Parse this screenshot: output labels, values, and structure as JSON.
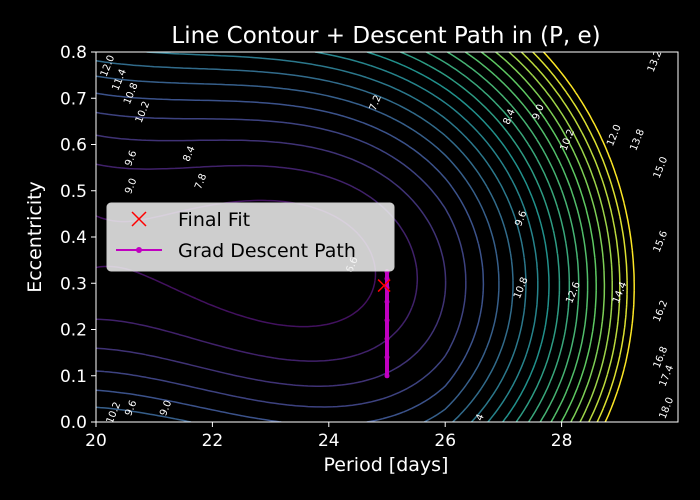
{
  "chart_data": {
    "type": "contour",
    "title": "Line Contour + Descent Path in (P, e)",
    "xlabel": "Period [days]",
    "ylabel": "Eccentricity",
    "xlim": [
      20,
      30
    ],
    "ylim": [
      0,
      0.8
    ],
    "xticks": [
      "20",
      "22",
      "24",
      "26",
      "28"
    ],
    "yticks": [
      "0.0",
      "0.1",
      "0.2",
      "0.3",
      "0.4",
      "0.5",
      "0.6",
      "0.7",
      "0.8"
    ],
    "grid": false,
    "colormap": "viridis",
    "background": "#000000",
    "contour_levels": [
      6.6,
      7.2,
      7.8,
      8.4,
      9.0,
      9.6,
      10.2,
      10.8,
      11.4,
      12.0,
      12.6,
      13.2,
      13.8,
      14.4,
      15.0,
      15.6,
      16.2,
      16.8,
      17.4,
      18.0
    ],
    "level_range": [
      6.0,
      18.0
    ],
    "contour_labels": [
      {
        "text": "12.0",
        "x": 20.2,
        "y": 0.77
      },
      {
        "text": "11.4",
        "x": 20.4,
        "y": 0.74
      },
      {
        "text": "10.8",
        "x": 20.6,
        "y": 0.71
      },
      {
        "text": "10.2",
        "x": 20.8,
        "y": 0.67
      },
      {
        "text": "9.6",
        "x": 20.6,
        "y": 0.57
      },
      {
        "text": "9.0",
        "x": 20.6,
        "y": 0.51
      },
      {
        "text": "8.4",
        "x": 21.6,
        "y": 0.58
      },
      {
        "text": "7.8",
        "x": 21.8,
        "y": 0.52
      },
      {
        "text": "7.2",
        "x": 24.8,
        "y": 0.69
      },
      {
        "text": "6.6",
        "x": 24.4,
        "y": 0.34
      },
      {
        "text": "8.4",
        "x": 27.1,
        "y": 0.66
      },
      {
        "text": "9.0",
        "x": 27.6,
        "y": 0.67
      },
      {
        "text": "10.2",
        "x": 28.1,
        "y": 0.61
      },
      {
        "text": "12.0",
        "x": 28.9,
        "y": 0.62
      },
      {
        "text": "13.8",
        "x": 29.3,
        "y": 0.61
      },
      {
        "text": "13.2",
        "x": 29.6,
        "y": 0.78
      },
      {
        "text": "15.0",
        "x": 29.7,
        "y": 0.55
      },
      {
        "text": "9.6",
        "x": 27.3,
        "y": 0.44
      },
      {
        "text": "15.6",
        "x": 29.7,
        "y": 0.39
      },
      {
        "text": "10.8",
        "x": 27.3,
        "y": 0.29
      },
      {
        "text": "12.6",
        "x": 28.2,
        "y": 0.28
      },
      {
        "text": "14.4",
        "x": 29.0,
        "y": 0.28
      },
      {
        "text": "16.2",
        "x": 29.7,
        "y": 0.24
      },
      {
        "text": "16.8",
        "x": 29.7,
        "y": 0.14
      },
      {
        "text": "17.4",
        "x": 29.8,
        "y": 0.1
      },
      {
        "text": "18.0",
        "x": 29.8,
        "y": 0.03
      },
      {
        "text": "9.0",
        "x": 21.2,
        "y": 0.03
      },
      {
        "text": "9.6",
        "x": 20.6,
        "y": 0.03
      },
      {
        "text": "10.2",
        "x": 20.3,
        "y": 0.02
      },
      {
        "text": "4",
        "x": 26.6,
        "y": 0.01
      }
    ],
    "descent_path": {
      "color": "#c000c0",
      "points": [
        [
          25.0,
          0.1
        ],
        [
          25.0,
          0.14
        ],
        [
          25.0,
          0.18
        ],
        [
          25.0,
          0.22
        ],
        [
          25.0,
          0.26
        ],
        [
          25.0,
          0.29
        ],
        [
          25.0,
          0.31
        ],
        [
          25.0,
          0.325
        ]
      ]
    },
    "final_fit": {
      "x": 24.95,
      "y": 0.295,
      "color": "#ff0000"
    },
    "legend": {
      "placement": "center-left",
      "entries": [
        {
          "label": "Final Fit",
          "marker": "x",
          "color": "#ff0000"
        },
        {
          "label": "Grad Descent Path",
          "marker": "line-dot",
          "color": "#c000c0"
        }
      ]
    }
  }
}
